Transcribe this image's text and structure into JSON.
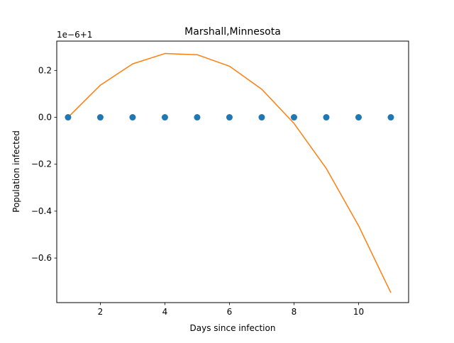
{
  "chart_data": {
    "type": "scatter",
    "title": "Marshall,Minnesota",
    "xlabel": "Days since infection",
    "ylabel": "Population infected",
    "offset_text": "1e−6+1",
    "xlim": [
      0.65,
      11.55
    ],
    "ylim": [
      -0.79,
      0.325
    ],
    "x_ticks": [
      2,
      4,
      6,
      8,
      10
    ],
    "x_tick_labels": [
      "2",
      "4",
      "6",
      "8",
      "10"
    ],
    "y_ticks": [
      -0.6,
      -0.4,
      -0.2,
      0.0,
      0.2
    ],
    "y_tick_labels": [
      "−0.6",
      "−0.4",
      "−0.2",
      "0.0",
      "0.2"
    ],
    "grid": false,
    "series": [
      {
        "kind": "scatter",
        "color": "#1f77b4",
        "x": [
          1,
          2,
          3,
          4,
          5,
          6,
          7,
          8,
          9,
          10,
          11
        ],
        "y": [
          0,
          0,
          0,
          0,
          0,
          0,
          0,
          0,
          0,
          0,
          0
        ]
      },
      {
        "kind": "line",
        "color": "#ff7f0e",
        "x": [
          1,
          2,
          3,
          4,
          5,
          6,
          7,
          8,
          9,
          10,
          11
        ],
        "y": [
          0.0,
          0.137,
          0.228,
          0.272,
          0.267,
          0.218,
          0.12,
          -0.026,
          -0.218,
          -0.462,
          -0.748
        ]
      }
    ]
  }
}
